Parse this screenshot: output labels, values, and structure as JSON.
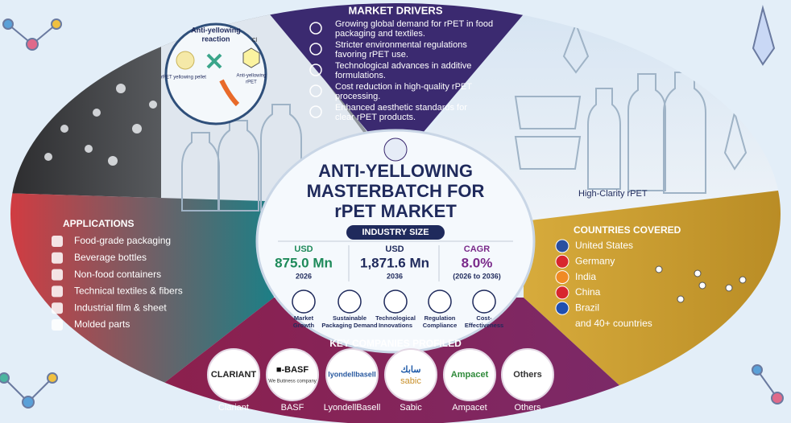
{
  "inset": {
    "title_lines": [
      "Anti-yellowing",
      "reaction"
    ],
    "atom": "Cl",
    "left_label": "rPET yellowing pellet",
    "right_label_lines": [
      "Anti-yellowing",
      "rPET"
    ]
  },
  "market_drivers": {
    "title": "MARKET DRIVERS",
    "items": [
      {
        "lines": [
          "Growing global demand for rPET in food",
          "packaging and textiles."
        ]
      },
      {
        "lines": [
          "Stricter environmental regulations",
          "favoring rPET use."
        ]
      },
      {
        "lines": [
          "Technological advances in additive",
          "formulations."
        ]
      },
      {
        "lines": [
          "Cost reduction in high-quality rPET",
          "processing."
        ]
      },
      {
        "lines": [
          "Enhanced aesthetic standards for",
          "clear rPET products."
        ]
      }
    ]
  },
  "photo_caption": "High-Clarity rPET",
  "center": {
    "title_lines": [
      "ANTI-YELLOWING",
      "MASTERBATCH FOR",
      "rPET MARKET"
    ],
    "badge": "INDUSTRY SIZE",
    "stats": [
      {
        "label": "USD",
        "value": "875.0 Mn",
        "year": "2026"
      },
      {
        "label": "USD",
        "value": "1,871.6 Mn",
        "year": "2036"
      },
      {
        "label": "CAGR",
        "value": "8.0%",
        "year": "(2026 to 2036)"
      }
    ],
    "factors": [
      {
        "lines": [
          "Market",
          "Growth"
        ]
      },
      {
        "lines": [
          "Sustainable",
          "Packaging Demand"
        ]
      },
      {
        "lines": [
          "Technological",
          "Innovations"
        ]
      },
      {
        "lines": [
          "Regulation",
          "Compliance"
        ]
      },
      {
        "lines": [
          "Cost-",
          "Effectiveness"
        ]
      }
    ]
  },
  "applications": {
    "title": "APPLICATIONS",
    "items": [
      "Food-grade packaging",
      "Beverage bottles",
      "Non-food containers",
      "Technical textiles & fibers",
      "Industrial film & sheet",
      "Molded parts"
    ]
  },
  "countries": {
    "title": "COUNTRIES COVERED",
    "items": [
      "United States",
      "Germany",
      "India",
      "China",
      "Brazil"
    ],
    "more": "and 40+ countries"
  },
  "companies": {
    "title": "KEY COMPANIES PROFILED",
    "items": [
      {
        "logo": "CLARIANT",
        "name": "Clariant"
      },
      {
        "logo": "■-BASF",
        "tagline": "We Butiness company",
        "name": "BASF"
      },
      {
        "logo": "lyondellbasell",
        "name": "LyondellBasell"
      },
      {
        "logo": "سابك",
        "tagline": "sabic",
        "name": "Sabic"
      },
      {
        "logo": "Ampacet",
        "name": "Ampacet"
      },
      {
        "logo": "Others",
        "name": "Others"
      }
    ]
  }
}
